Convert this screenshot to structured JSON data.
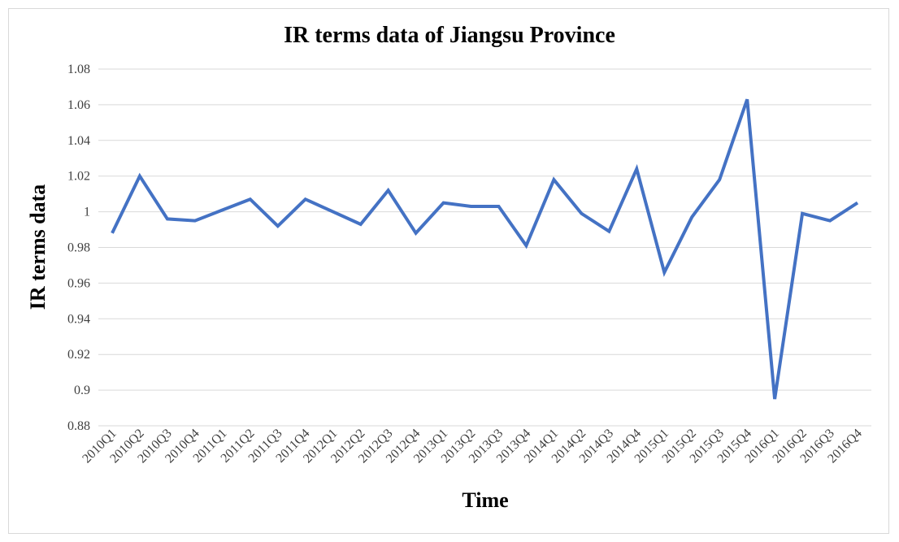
{
  "chart_data": {
    "type": "line",
    "title": "IR terms data of Jiangsu Province",
    "xlabel": "Time",
    "ylabel": "IR terms data",
    "ylim": [
      0.88,
      1.08
    ],
    "yticks": [
      "0.88",
      "0.9",
      "0.92",
      "0.94",
      "0.96",
      "0.98",
      "1",
      "1.02",
      "1.04",
      "1.06",
      "1.08"
    ],
    "grid": true,
    "line_color": "#4472c4",
    "categories": [
      "2010Q1",
      "2010Q2",
      "2010Q3",
      "2010Q4",
      "2011Q1",
      "2011Q2",
      "2011Q3",
      "2011Q4",
      "2012Q1",
      "2012Q2",
      "2012Q3",
      "2012Q4",
      "2013Q1",
      "2013Q2",
      "2013Q3",
      "2013Q4",
      "2014Q1",
      "2014Q2",
      "2014Q3",
      "2014Q4",
      "2015Q1",
      "2015Q2",
      "2015Q3",
      "2015Q4",
      "2016Q1",
      "2016Q2",
      "2016Q3",
      "2016Q4"
    ],
    "series": [
      {
        "values": [
          0.988,
          1.02,
          0.996,
          0.995,
          1.001,
          1.007,
          0.992,
          1.007,
          1.0,
          0.993,
          1.012,
          0.988,
          1.005,
          1.003,
          1.003,
          0.981,
          1.018,
          0.999,
          0.989,
          1.024,
          0.966,
          0.997,
          1.018,
          1.063,
          0.895,
          0.999,
          0.995,
          1.005
        ]
      }
    ]
  }
}
